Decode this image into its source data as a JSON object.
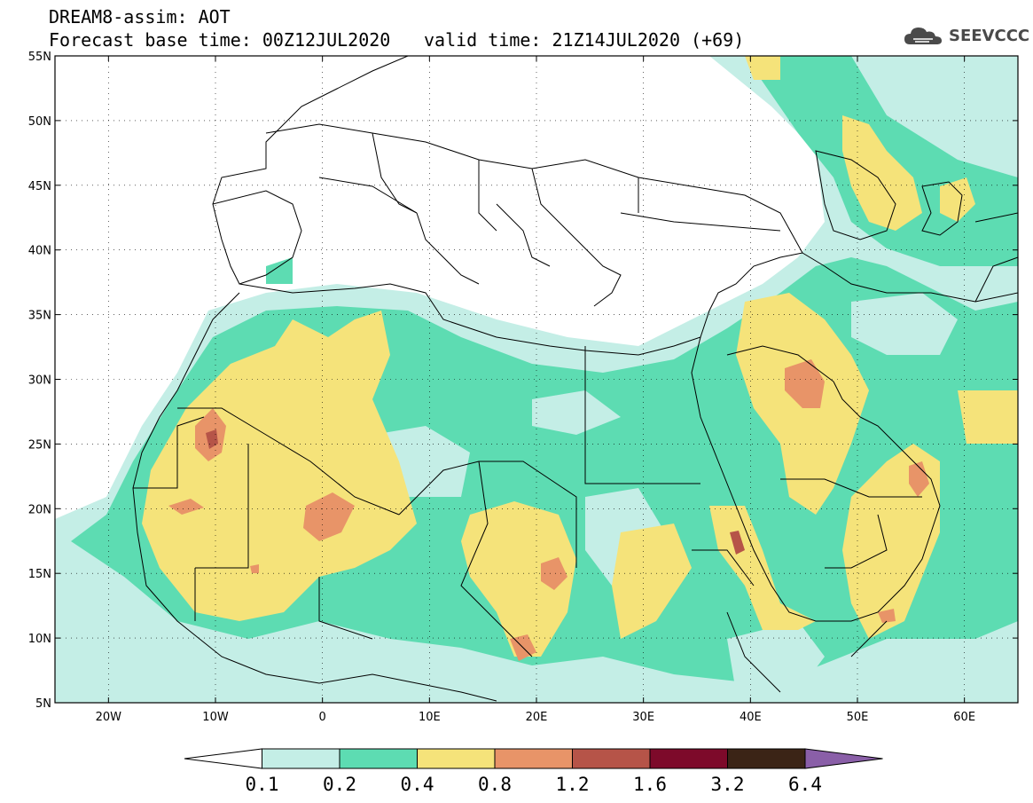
{
  "header": {
    "line1": "DREAM8-assim: AOT",
    "line2_left": "Forecast base time: 00Z12JUL2020",
    "line2_right": "valid time: 21Z14JUL2020 (+69)"
  },
  "logo": {
    "text": "SEEVCCC",
    "icon": "cloud-icon"
  },
  "map_axes": {
    "lon_range": [
      -25,
      65
    ],
    "lat_range": [
      5,
      55
    ],
    "lat_labels": [
      "55N",
      "50N",
      "45N",
      "40N",
      "35N",
      "30N",
      "25N",
      "20N",
      "15N",
      "10N",
      "5N"
    ],
    "lat_values": [
      55,
      50,
      45,
      40,
      35,
      30,
      25,
      20,
      15,
      10,
      5
    ],
    "lon_labels": [
      "20W",
      "10W",
      "0",
      "10E",
      "20E",
      "30E",
      "40E",
      "50E",
      "60E"
    ],
    "lon_values": [
      -20,
      -10,
      0,
      10,
      20,
      30,
      40,
      50,
      60
    ],
    "grid": "dotted"
  },
  "colorbar": {
    "labels": [
      "0.1",
      "0.2",
      "0.4",
      "0.8",
      "1.2",
      "1.6",
      "3.2",
      "6.4"
    ],
    "colors": [
      "#ffffff",
      "#c4eee6",
      "#5ddcb2",
      "#f5e37a",
      "#e89468",
      "#b65448",
      "#7d0a2a",
      "#3b2416",
      "#8a5fa8"
    ]
  },
  "aot_colors": {
    "c1": "#c4eee6",
    "c2": "#5ddcb2",
    "c3": "#f5e37a",
    "c4": "#e89468",
    "c5": "#b65448",
    "c6": "#7d0a2a"
  }
}
